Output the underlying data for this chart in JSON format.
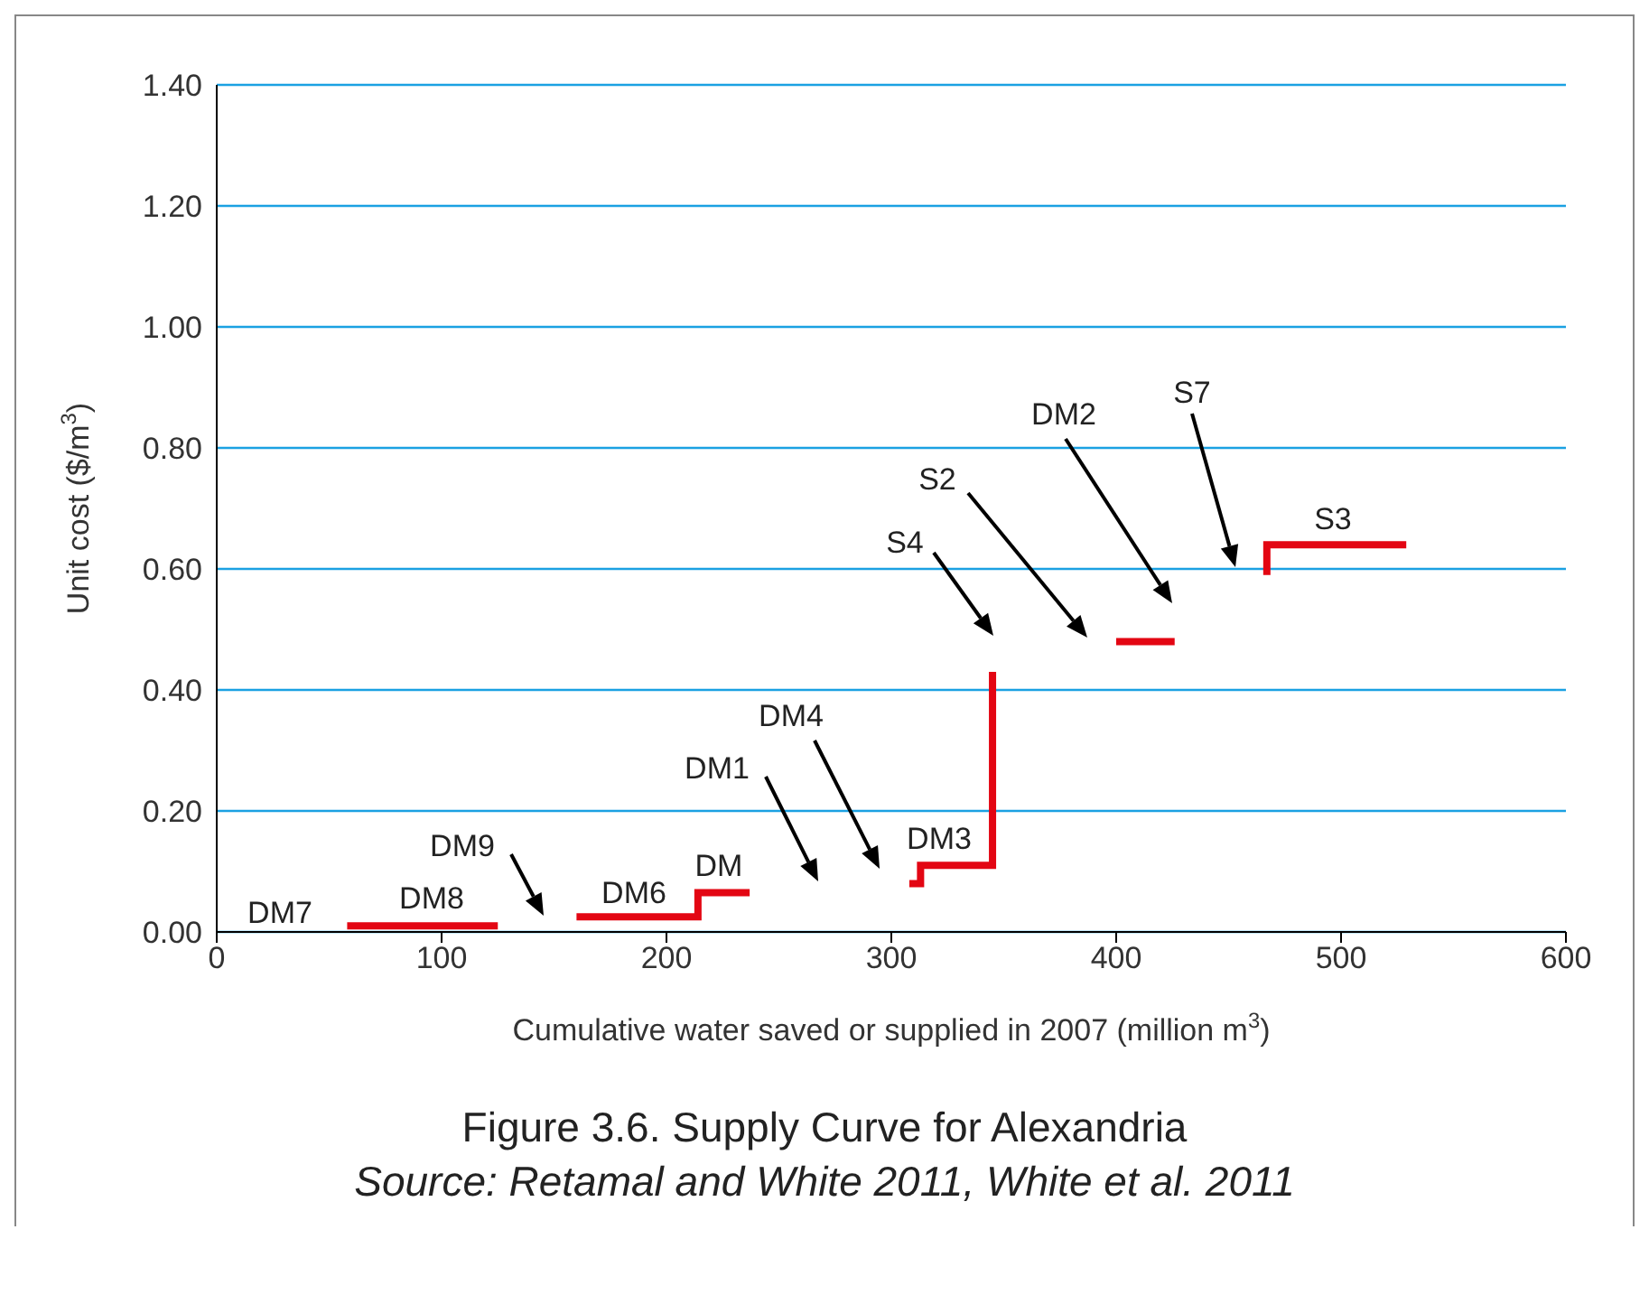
{
  "chart_data": {
    "type": "step",
    "title": "Figure 3.6. Supply Curve for Alexandria",
    "xlabel": "Cumulative water saved or supplied in 2007 (million m$^{3}$)",
    "ylabel": "Unit cost ($/m$^{3}$)",
    "xlim": [
      0,
      600
    ],
    "xticks": [
      0,
      100,
      200,
      300,
      400,
      500,
      600
    ],
    "ylim": [
      0,
      1.4
    ],
    "yticks": [
      {
        "value": 0,
        "label": "0.00"
      },
      {
        "value": 0.2,
        "label": "0.20"
      },
      {
        "value": 0.4,
        "label": "0.40"
      },
      {
        "value": 0.6,
        "label": "0.60"
      },
      {
        "value": 0.8,
        "label": "0.80"
      },
      {
        "value": 1,
        "label": "1.00"
      },
      {
        "value": 1.2,
        "label": "1.20"
      },
      {
        "value": 1.4,
        "label": "1.40"
      }
    ],
    "grid": "y",
    "series": [
      {
        "color": "#e30613",
        "x": [
          58,
          125
        ],
        "values": [
          0.01,
          0.01
        ]
      },
      {
        "color": "#e30613",
        "x": [
          160,
          214,
          237
        ],
        "values": [
          0.025,
          0.065,
          0.065
        ]
      },
      {
        "color": "#e30613",
        "x": [
          308,
          313,
          345
        ],
        "values": [
          0.08,
          0.11,
          0.43
        ]
      },
      {
        "color": "#e30613",
        "x": [
          400,
          426
        ],
        "values": [
          0.48,
          0.48
        ]
      },
      {
        "color": "#e30613",
        "x": [
          467,
          467,
          529
        ],
        "values": [
          0.59,
          0.64,
          0.64
        ]
      }
    ],
    "annotations": [
      "DM7",
      "DM8",
      "DM9",
      "DM6",
      "DM",
      "DM1",
      "DM4",
      "DM3",
      "S4",
      "S2",
      "DM2",
      "S7",
      "S3",
      "Source: Retamal and White 2011, White et al. 2011"
    ]
  }
}
